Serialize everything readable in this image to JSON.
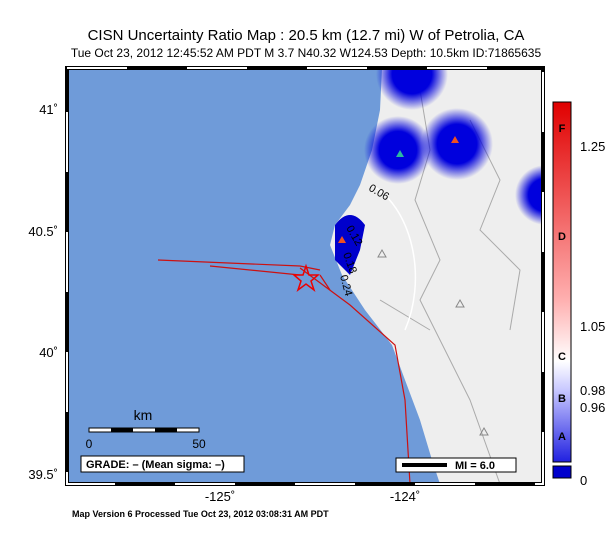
{
  "header": {
    "title": "CISN Uncertainty Ratio Map : 20.5 km (12.7 mi) W of Petrolia, CA",
    "subtitle": "Tue Oct 23, 2012 12:45:52 AM PDT   M 3.7   N40.32 W124.53   Depth: 10.5km   ID:71865635"
  },
  "map": {
    "lat_labels": [
      "41˚",
      "40.5˚",
      "40˚",
      "39.5˚"
    ],
    "lon_labels": [
      "-125˚",
      "-124˚"
    ],
    "contours": [
      "0.06",
      "0.12",
      "0.18",
      "0.24"
    ],
    "scale": {
      "unit": "km",
      "start": "0",
      "end": "50"
    },
    "grade": "GRADE: – (Mean sigma: –)",
    "legend": "MI = 6.0"
  },
  "colorbar": {
    "letters": [
      "F",
      "D",
      "C",
      "B",
      "A"
    ],
    "values": [
      "1.25",
      "1.05",
      "0.98",
      "0.96",
      "0"
    ]
  },
  "footer": "Map Version 6 Processed Tue Oct 23, 2012 03:08:31 AM PDT"
}
